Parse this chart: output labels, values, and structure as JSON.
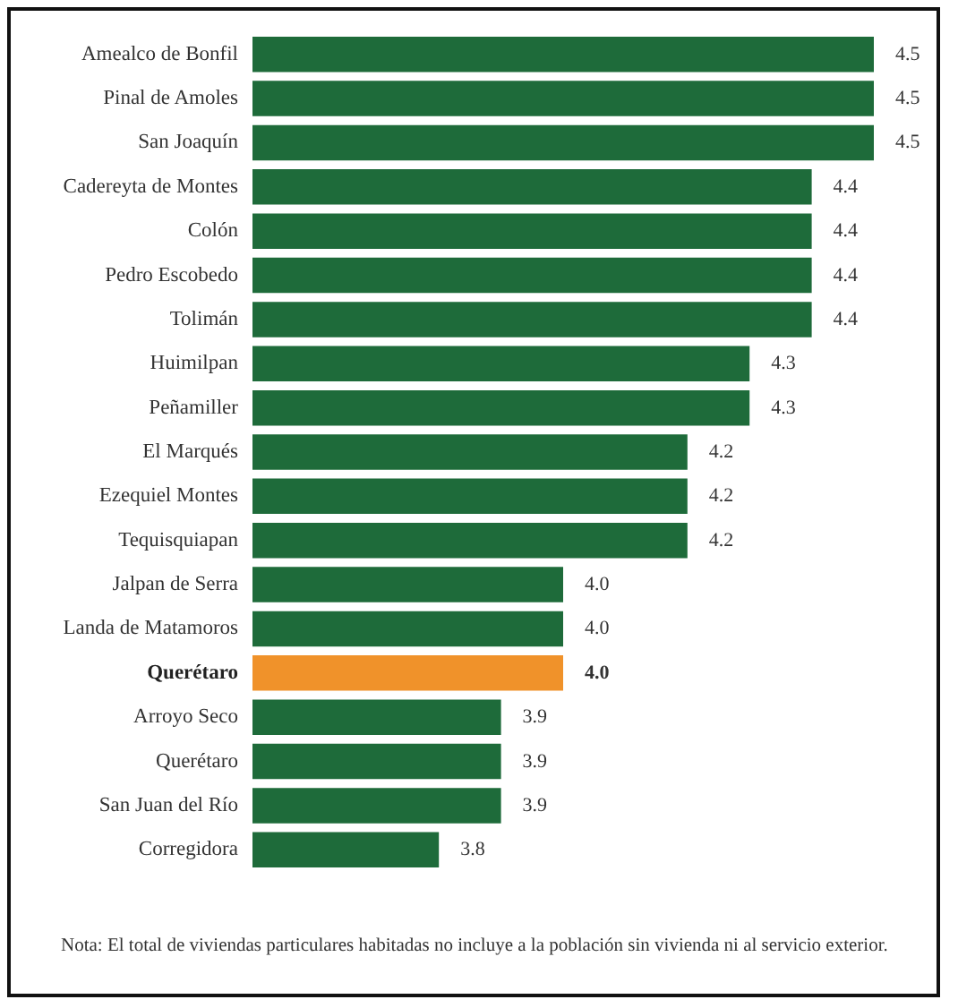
{
  "chart_data": {
    "type": "bar",
    "orientation": "horizontal",
    "xlim": [
      3.5,
      4.5
    ],
    "value_labels": [
      "4.5",
      "4.5",
      "4.5",
      "4.4",
      "4.4",
      "4.4",
      "4.4",
      "4.3",
      "4.3",
      "4.2",
      "4.2",
      "4.2",
      "4.0",
      "4.0",
      "4.0",
      "3.9",
      "3.9",
      "3.9",
      "3.8"
    ],
    "categories": [
      "Amealco de Bonfil",
      "Pinal de Amoles",
      "San Joaquín",
      "Cadereyta de Montes",
      "Colón",
      "Pedro Escobedo",
      "Tolimán",
      "Huimilpan",
      "Peñamiller",
      "El Marqués",
      "Ezequiel Montes",
      "Tequisquiapan",
      "Jalpan de Serra",
      "Landa de Matamoros",
      "Querétaro",
      "Arroyo Seco",
      "Querétaro",
      "San Juan del Río",
      "Corregidora"
    ],
    "values": [
      4.5,
      4.5,
      4.5,
      4.4,
      4.4,
      4.4,
      4.4,
      4.3,
      4.3,
      4.2,
      4.2,
      4.2,
      4.0,
      4.0,
      4.0,
      3.9,
      3.9,
      3.9,
      3.8
    ],
    "colors": [
      "#1e6b3a",
      "#1e6b3a",
      "#1e6b3a",
      "#1e6b3a",
      "#1e6b3a",
      "#1e6b3a",
      "#1e6b3a",
      "#1e6b3a",
      "#1e6b3a",
      "#1e6b3a",
      "#1e6b3a",
      "#1e6b3a",
      "#1e6b3a",
      "#1e6b3a",
      "#f0922a",
      "#1e6b3a",
      "#1e6b3a",
      "#1e6b3a",
      "#1e6b3a"
    ],
    "annotations": [
      "Nota: El total de viviendas particulares habitadas no incluye a la población sin vivienda ni al servicio exterior."
    ]
  }
}
